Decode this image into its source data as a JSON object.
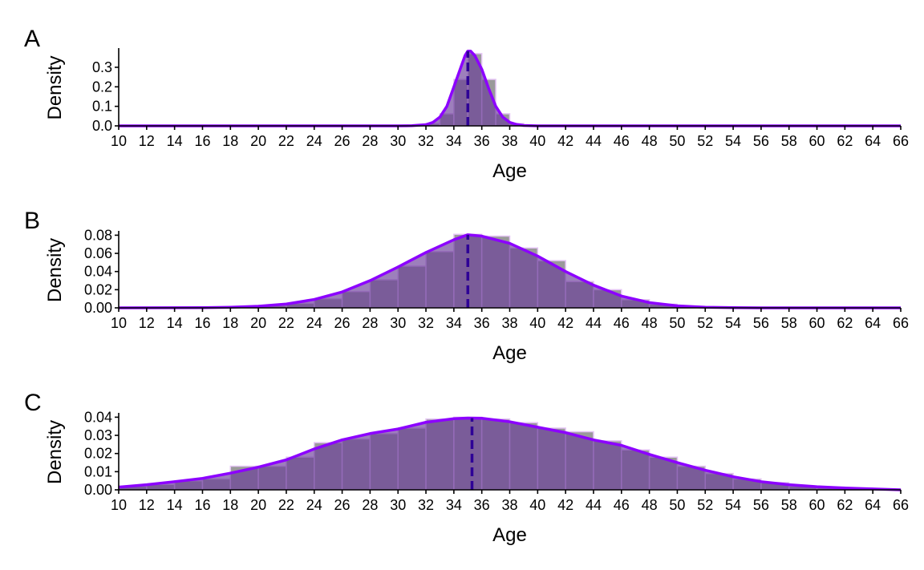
{
  "chart_data": [
    {
      "type": "histogram",
      "panel_label": "A",
      "xlabel": "Age",
      "ylabel": "Density",
      "xlim": [
        10,
        66
      ],
      "ylim": [
        0,
        0.39
      ],
      "xticks": [
        "10",
        "12",
        "14",
        "16",
        "18",
        "20",
        "22",
        "24",
        "26",
        "28",
        "30",
        "32",
        "34",
        "36",
        "38",
        "40",
        "42",
        "44",
        "46",
        "48",
        "50",
        "52",
        "54",
        "56",
        "58",
        "60",
        "62",
        "64",
        "66"
      ],
      "yticks": [
        "0.0",
        "0.1",
        "0.2",
        "0.3"
      ],
      "ytick_values": [
        0.0,
        0.1,
        0.2,
        0.3
      ],
      "bins": [
        {
          "x0": 31,
          "x1": 32,
          "density": 0.002
        },
        {
          "x0": 32,
          "x1": 33,
          "density": 0.012
        },
        {
          "x0": 33,
          "x1": 34,
          "density": 0.062
        },
        {
          "x0": 34,
          "x1": 35,
          "density": 0.238
        },
        {
          "x0": 35,
          "x1": 36,
          "density": 0.37
        },
        {
          "x0": 36,
          "x1": 37,
          "density": 0.238
        },
        {
          "x0": 37,
          "x1": 38,
          "density": 0.062
        },
        {
          "x0": 38,
          "x1": 39,
          "density": 0.012
        }
      ],
      "kde": [
        [
          10,
          0
        ],
        [
          30,
          0
        ],
        [
          31,
          0.001
        ],
        [
          32,
          0.006
        ],
        [
          32.5,
          0.018
        ],
        [
          33,
          0.045
        ],
        [
          33.5,
          0.1
        ],
        [
          34,
          0.2
        ],
        [
          34.5,
          0.3
        ],
        [
          34.8,
          0.36
        ],
        [
          35,
          0.383
        ],
        [
          35.2,
          0.383
        ],
        [
          35.5,
          0.36
        ],
        [
          36,
          0.29
        ],
        [
          36.5,
          0.19
        ],
        [
          37,
          0.1
        ],
        [
          37.5,
          0.045
        ],
        [
          38,
          0.018
        ],
        [
          38.5,
          0.007
        ],
        [
          39,
          0.002
        ],
        [
          40,
          0
        ],
        [
          66,
          0
        ]
      ],
      "mean": 35
    },
    {
      "type": "histogram",
      "panel_label": "B",
      "xlabel": "Age",
      "ylabel": "Density",
      "xlim": [
        10,
        66
      ],
      "ylim": [
        0,
        0.083
      ],
      "xticks": [
        "10",
        "12",
        "14",
        "16",
        "18",
        "20",
        "22",
        "24",
        "26",
        "28",
        "30",
        "32",
        "34",
        "36",
        "38",
        "40",
        "42",
        "44",
        "46",
        "48",
        "50",
        "52",
        "54",
        "56",
        "58",
        "60",
        "62",
        "64",
        "66"
      ],
      "yticks": [
        "0.00",
        "0.02",
        "0.04",
        "0.06",
        "0.08"
      ],
      "ytick_values": [
        0.0,
        0.02,
        0.04,
        0.06,
        0.08
      ],
      "bins": [
        {
          "x0": 16,
          "x1": 18,
          "density": 0.0005
        },
        {
          "x0": 18,
          "x1": 20,
          "density": 0.0012
        },
        {
          "x0": 20,
          "x1": 22,
          "density": 0.0025
        },
        {
          "x0": 22,
          "x1": 24,
          "density": 0.005
        },
        {
          "x0": 24,
          "x1": 26,
          "density": 0.01
        },
        {
          "x0": 26,
          "x1": 28,
          "density": 0.018
        },
        {
          "x0": 28,
          "x1": 30,
          "density": 0.031
        },
        {
          "x0": 30,
          "x1": 32,
          "density": 0.046
        },
        {
          "x0": 32,
          "x1": 34,
          "density": 0.062
        },
        {
          "x0": 34,
          "x1": 36,
          "density": 0.081
        },
        {
          "x0": 36,
          "x1": 38,
          "density": 0.079
        },
        {
          "x0": 38,
          "x1": 40,
          "density": 0.066
        },
        {
          "x0": 40,
          "x1": 42,
          "density": 0.052
        },
        {
          "x0": 42,
          "x1": 44,
          "density": 0.029
        },
        {
          "x0": 44,
          "x1": 46,
          "density": 0.02
        },
        {
          "x0": 46,
          "x1": 48,
          "density": 0.009
        },
        {
          "x0": 48,
          "x1": 50,
          "density": 0.004
        },
        {
          "x0": 50,
          "x1": 52,
          "density": 0.0015
        },
        {
          "x0": 52,
          "x1": 54,
          "density": 0.0005
        }
      ],
      "kde": [
        [
          10,
          0
        ],
        [
          16,
          0.0002
        ],
        [
          18,
          0.0007
        ],
        [
          20,
          0.0018
        ],
        [
          22,
          0.0042
        ],
        [
          24,
          0.0092
        ],
        [
          26,
          0.0175
        ],
        [
          28,
          0.03
        ],
        [
          30,
          0.045
        ],
        [
          32,
          0.061
        ],
        [
          34,
          0.075
        ],
        [
          35,
          0.0805
        ],
        [
          36,
          0.079
        ],
        [
          38,
          0.071
        ],
        [
          40,
          0.057
        ],
        [
          42,
          0.04
        ],
        [
          44,
          0.025
        ],
        [
          46,
          0.013
        ],
        [
          48,
          0.0058
        ],
        [
          50,
          0.0022
        ],
        [
          52,
          0.0007
        ],
        [
          54,
          0.0002
        ],
        [
          56,
          0
        ],
        [
          66,
          0
        ]
      ],
      "mean": 35
    },
    {
      "type": "histogram",
      "panel_label": "C",
      "xlabel": "Age",
      "ylabel": "Density",
      "xlim": [
        10,
        66
      ],
      "ylim": [
        0,
        0.0415
      ],
      "xticks": [
        "10",
        "12",
        "14",
        "16",
        "18",
        "20",
        "22",
        "24",
        "26",
        "28",
        "30",
        "32",
        "34",
        "36",
        "38",
        "40",
        "42",
        "44",
        "46",
        "48",
        "50",
        "52",
        "54",
        "56",
        "58",
        "60",
        "62",
        "64",
        "66"
      ],
      "yticks": [
        "0.00",
        "0.01",
        "0.02",
        "0.03",
        "0.04"
      ],
      "ytick_values": [
        0.0,
        0.01,
        0.02,
        0.03,
        0.04
      ],
      "bins": [
        {
          "x0": 10,
          "x1": 12,
          "density": 0.002
        },
        {
          "x0": 12,
          "x1": 14,
          "density": 0.003
        },
        {
          "x0": 14,
          "x1": 16,
          "density": 0.005
        },
        {
          "x0": 16,
          "x1": 18,
          "density": 0.006
        },
        {
          "x0": 18,
          "x1": 20,
          "density": 0.013
        },
        {
          "x0": 20,
          "x1": 22,
          "density": 0.013
        },
        {
          "x0": 22,
          "x1": 24,
          "density": 0.018
        },
        {
          "x0": 24,
          "x1": 26,
          "density": 0.026
        },
        {
          "x0": 26,
          "x1": 28,
          "density": 0.028
        },
        {
          "x0": 28,
          "x1": 30,
          "density": 0.031
        },
        {
          "x0": 30,
          "x1": 32,
          "density": 0.034
        },
        {
          "x0": 32,
          "x1": 34,
          "density": 0.039
        },
        {
          "x0": 34,
          "x1": 36,
          "density": 0.04
        },
        {
          "x0": 36,
          "x1": 38,
          "density": 0.039
        },
        {
          "x0": 38,
          "x1": 40,
          "density": 0.037
        },
        {
          "x0": 40,
          "x1": 42,
          "density": 0.034
        },
        {
          "x0": 42,
          "x1": 44,
          "density": 0.032
        },
        {
          "x0": 44,
          "x1": 46,
          "density": 0.027
        },
        {
          "x0": 46,
          "x1": 48,
          "density": 0.022
        },
        {
          "x0": 48,
          "x1": 50,
          "density": 0.018
        },
        {
          "x0": 50,
          "x1": 52,
          "density": 0.013
        },
        {
          "x0": 52,
          "x1": 54,
          "density": 0.009
        },
        {
          "x0": 54,
          "x1": 56,
          "density": 0.006
        },
        {
          "x0": 56,
          "x1": 58,
          "density": 0.004
        },
        {
          "x0": 58,
          "x1": 60,
          "density": 0.002
        },
        {
          "x0": 60,
          "x1": 62,
          "density": 0.0015
        },
        {
          "x0": 62,
          "x1": 64,
          "density": 0.001
        },
        {
          "x0": 64,
          "x1": 66,
          "density": 0.0003
        }
      ],
      "kde": [
        [
          10,
          0.0015
        ],
        [
          12,
          0.0028
        ],
        [
          14,
          0.0045
        ],
        [
          16,
          0.0063
        ],
        [
          18,
          0.0092
        ],
        [
          20,
          0.0125
        ],
        [
          22,
          0.0165
        ],
        [
          24,
          0.0225
        ],
        [
          26,
          0.0275
        ],
        [
          28,
          0.031
        ],
        [
          30,
          0.0335
        ],
        [
          32,
          0.0372
        ],
        [
          34,
          0.0392
        ],
        [
          35,
          0.0395
        ],
        [
          36,
          0.0394
        ],
        [
          38,
          0.0375
        ],
        [
          40,
          0.0345
        ],
        [
          42,
          0.0315
        ],
        [
          44,
          0.0275
        ],
        [
          46,
          0.0245
        ],
        [
          48,
          0.0195
        ],
        [
          50,
          0.015
        ],
        [
          52,
          0.0108
        ],
        [
          54,
          0.0072
        ],
        [
          56,
          0.0045
        ],
        [
          58,
          0.0028
        ],
        [
          60,
          0.0017
        ],
        [
          62,
          0.001
        ],
        [
          64,
          0.0005
        ],
        [
          66,
          0
        ]
      ],
      "mean": 35.3
    }
  ],
  "colors": {
    "bar_fill": "#9a9a9a",
    "bar_gap": "#e4c4f4",
    "density_fill": "#6a3d9a",
    "density_line": "#8c00ff",
    "mean_line": "#2e0096",
    "axis": "#000000"
  }
}
